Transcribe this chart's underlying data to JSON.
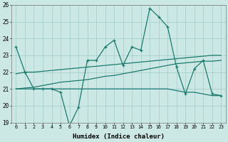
{
  "x": [
    0,
    1,
    2,
    3,
    4,
    5,
    6,
    7,
    8,
    9,
    10,
    11,
    12,
    13,
    14,
    15,
    16,
    17,
    18,
    19,
    20,
    21,
    22,
    23
  ],
  "line1": [
    23.5,
    22.0,
    21.0,
    21.0,
    21.0,
    20.8,
    18.8,
    19.9,
    22.7,
    22.7,
    23.5,
    23.9,
    22.4,
    23.5,
    23.3,
    25.8,
    25.3,
    24.7,
    22.3,
    20.7,
    22.2,
    22.7,
    20.7,
    20.6
  ],
  "line2": [
    21.9,
    22.0,
    22.0,
    22.05,
    22.1,
    22.15,
    22.2,
    22.25,
    22.3,
    22.35,
    22.4,
    22.45,
    22.5,
    22.55,
    22.6,
    22.65,
    22.7,
    22.75,
    22.8,
    22.85,
    22.9,
    22.95,
    23.0,
    23.0
  ],
  "line3": [
    21.0,
    21.05,
    21.1,
    21.2,
    21.3,
    21.4,
    21.45,
    21.5,
    21.55,
    21.65,
    21.75,
    21.8,
    21.9,
    22.0,
    22.1,
    22.2,
    22.3,
    22.4,
    22.5,
    22.55,
    22.6,
    22.65,
    22.65,
    22.7
  ],
  "line4": [
    21.0,
    21.0,
    21.0,
    21.0,
    21.0,
    21.0,
    21.0,
    21.0,
    21.0,
    21.0,
    21.0,
    21.0,
    21.0,
    21.0,
    21.0,
    21.0,
    21.0,
    21.0,
    20.9,
    20.8,
    20.8,
    20.7,
    20.6,
    20.6
  ],
  "line_color": "#1a7a6e",
  "bg_color": "#cce8e4",
  "grid_color": "#aacfcb",
  "xlabel": "Humidex (Indice chaleur)",
  "ylim": [
    19,
    26
  ],
  "xlim": [
    -0.5,
    23.5
  ],
  "yticks": [
    19,
    20,
    21,
    22,
    23,
    24,
    25,
    26
  ],
  "xticks": [
    0,
    1,
    2,
    3,
    4,
    5,
    6,
    7,
    8,
    9,
    10,
    11,
    12,
    13,
    14,
    15,
    16,
    17,
    18,
    19,
    20,
    21,
    22,
    23
  ]
}
